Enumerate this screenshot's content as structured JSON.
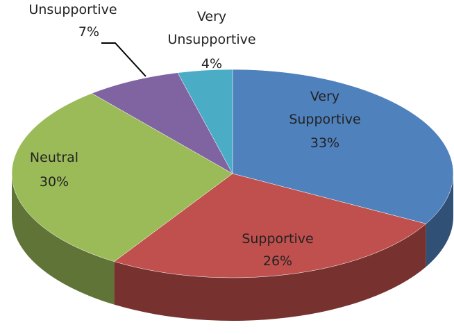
{
  "chart_data": {
    "type": "pie",
    "categories": [
      "Very Supportive",
      "Supportive",
      "Neutral",
      "Unsupportive",
      "Very Unsupportive"
    ],
    "values": [
      33,
      26,
      30,
      7,
      4
    ],
    "value_labels": [
      "33%",
      "26%",
      "30%",
      "7%",
      "4%"
    ],
    "colors": [
      "#4f81bd",
      "#c0504d",
      "#9bbb59",
      "#8064a2",
      "#4bacc6"
    ]
  }
}
